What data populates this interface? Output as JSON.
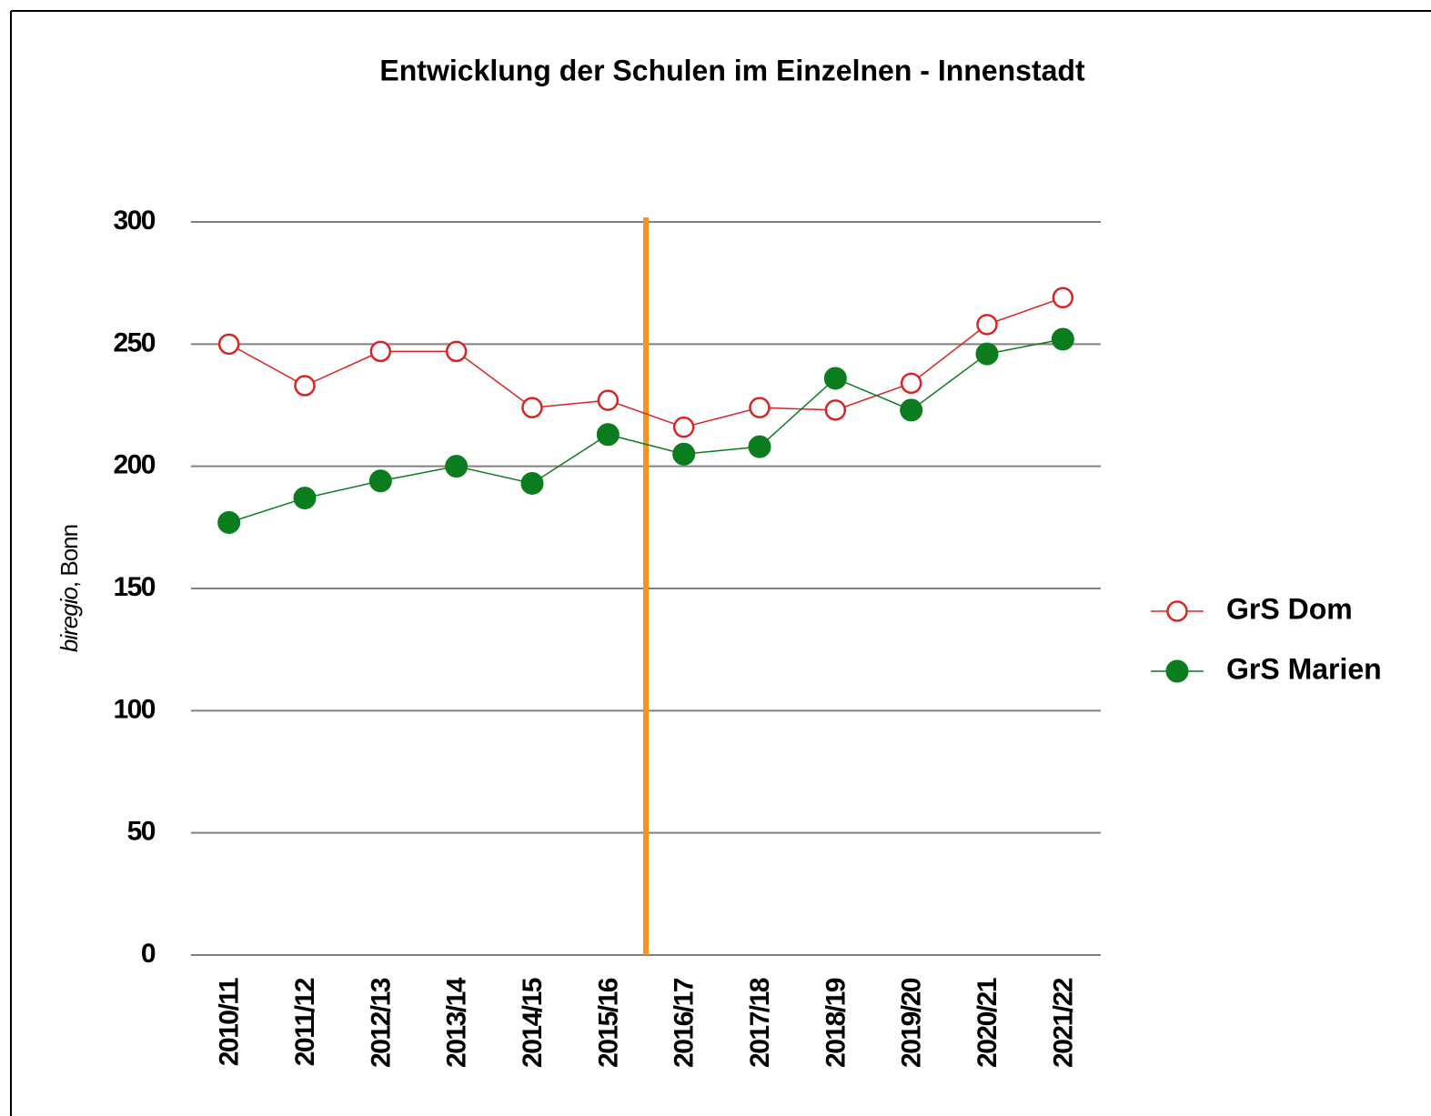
{
  "chart_data": {
    "type": "line",
    "title": "Entwicklung der Schulen im Einzelnen - Innenstadt",
    "ylabel_italic": "biregio",
    "ylabel_rest": ", Bonn",
    "categories": [
      "2010/11",
      "2011/12",
      "2012/13",
      "2013/14",
      "2014/15",
      "2015/16",
      "2016/17",
      "2017/18",
      "2018/19",
      "2019/20",
      "2020/21",
      "2021/22"
    ],
    "series": [
      {
        "name": "GrS Dom",
        "color": "#d92424",
        "marker": "open",
        "values": [
          250,
          233,
          247,
          247,
          224,
          227,
          216,
          224,
          223,
          234,
          258,
          269
        ]
      },
      {
        "name": "GrS Marien",
        "color": "#0b7d1e",
        "marker": "filled",
        "values": [
          177,
          187,
          194,
          200,
          193,
          213,
          205,
          208,
          236,
          223,
          246,
          252
        ]
      }
    ],
    "ylim": [
      0,
      300
    ],
    "yticks": [
      0,
      50,
      100,
      150,
      200,
      250,
      300
    ],
    "grid": true,
    "legend": "right",
    "vline": {
      "x": 5.5,
      "color": "#f7941d"
    }
  }
}
